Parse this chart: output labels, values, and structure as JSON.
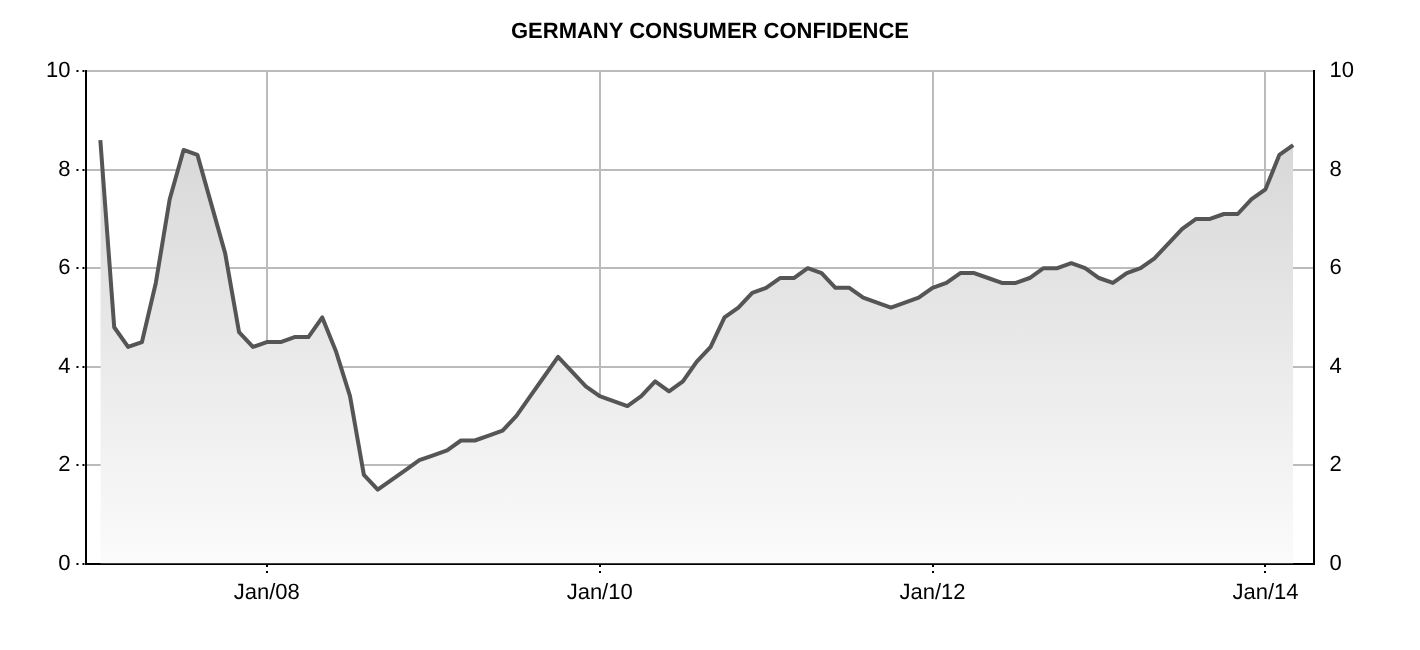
{
  "chart_data": {
    "type": "area",
    "title": "GERMANY CONSUMER CONFIDENCE",
    "x": [
      "2007-01",
      "2007-02",
      "2007-03",
      "2007-04",
      "2007-05",
      "2007-06",
      "2007-07",
      "2007-08",
      "2007-09",
      "2007-10",
      "2007-11",
      "2007-12",
      "2008-01",
      "2008-02",
      "2008-03",
      "2008-04",
      "2008-05",
      "2008-06",
      "2008-07",
      "2008-08",
      "2008-09",
      "2008-10",
      "2008-11",
      "2008-12",
      "2009-01",
      "2009-02",
      "2009-03",
      "2009-04",
      "2009-05",
      "2009-06",
      "2009-07",
      "2009-08",
      "2009-09",
      "2009-10",
      "2009-11",
      "2009-12",
      "2010-01",
      "2010-02",
      "2010-03",
      "2010-04",
      "2010-05",
      "2010-06",
      "2010-07",
      "2010-08",
      "2010-09",
      "2010-10",
      "2010-11",
      "2010-12",
      "2011-01",
      "2011-02",
      "2011-03",
      "2011-04",
      "2011-05",
      "2011-06",
      "2011-07",
      "2011-08",
      "2011-09",
      "2011-10",
      "2011-11",
      "2011-12",
      "2012-01",
      "2012-02",
      "2012-03",
      "2012-04",
      "2012-05",
      "2012-06",
      "2012-07",
      "2012-08",
      "2012-09",
      "2012-10",
      "2012-11",
      "2012-12",
      "2013-01",
      "2013-02",
      "2013-03",
      "2013-04",
      "2013-05",
      "2013-06",
      "2013-07",
      "2013-08",
      "2013-09",
      "2013-10",
      "2013-11",
      "2013-12",
      "2014-01",
      "2014-02",
      "2014-03"
    ],
    "series": [
      {
        "color": "#555555",
        "values": [
          8.6,
          4.8,
          4.4,
          4.5,
          5.7,
          7.4,
          8.4,
          8.3,
          7.3,
          6.3,
          4.7,
          4.4,
          4.5,
          4.5,
          4.6,
          4.6,
          5.0,
          4.3,
          3.4,
          1.8,
          1.5,
          1.7,
          1.9,
          2.1,
          2.2,
          2.3,
          2.5,
          2.5,
          2.6,
          2.7,
          3.0,
          3.4,
          3.8,
          4.2,
          3.9,
          3.6,
          3.4,
          3.3,
          3.2,
          3.4,
          3.7,
          3.5,
          3.7,
          4.1,
          4.4,
          5.0,
          5.2,
          5.5,
          5.6,
          5.8,
          5.8,
          6.0,
          5.9,
          5.6,
          5.6,
          5.4,
          5.3,
          5.2,
          5.3,
          5.4,
          5.6,
          5.7,
          5.9,
          5.9,
          5.8,
          5.7,
          5.7,
          5.8,
          6.0,
          6.0,
          6.1,
          6.0,
          5.8,
          5.7,
          5.9,
          6.0,
          6.2,
          6.5,
          6.8,
          7.0,
          7.0,
          7.1,
          7.1,
          7.4,
          7.6,
          8.3,
          8.5
        ]
      }
    ],
    "xlim": [
      "2006-12",
      "2014-04-15"
    ],
    "xticks": [
      {
        "value": "2008-01",
        "label": "Jan/08"
      },
      {
        "value": "2010-01",
        "label": "Jan/10"
      },
      {
        "value": "2012-01",
        "label": "Jan/12"
      },
      {
        "value": "2014-01",
        "label": "Jan/14"
      }
    ],
    "ylim": [
      0,
      10
    ],
    "yticks": [
      0,
      2,
      4,
      6,
      8,
      10
    ],
    "y2lim": [
      0,
      10
    ],
    "y2ticks": [
      0,
      2,
      4,
      6,
      8,
      10
    ],
    "grid": true,
    "legend": false,
    "marker": "none",
    "line_style": "solid"
  }
}
